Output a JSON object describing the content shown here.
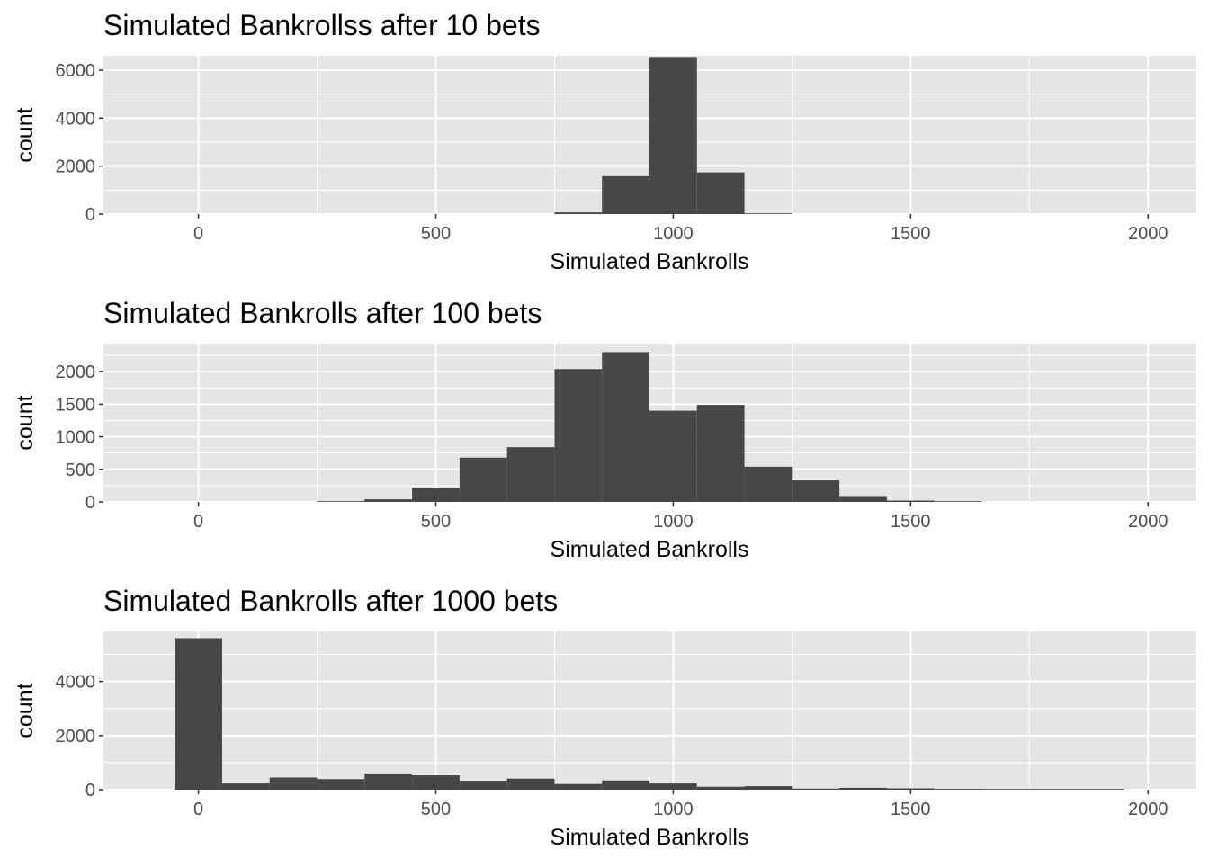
{
  "colors": {
    "panel_bg": "#e5e5e5",
    "grid": "#ffffff",
    "bar": "#474747",
    "tick_text": "#4d4d4d"
  },
  "chart_data": [
    {
      "type": "bar",
      "title": "Simulated Bankrollss after 10 bets",
      "xlabel": "Simulated Bankrolls",
      "ylabel": "count",
      "binwidth": 100,
      "xlim": [
        -200,
        2100
      ],
      "ylim": [
        0,
        6600
      ],
      "xticks": [
        0,
        500,
        1000,
        1500,
        2000
      ],
      "yticks": [
        0,
        2000,
        4000,
        6000
      ],
      "grid": true,
      "bins": [
        {
          "x": 800,
          "count": 70
        },
        {
          "x": 900,
          "count": 1580
        },
        {
          "x": 1000,
          "count": 6550
        },
        {
          "x": 1100,
          "count": 1740
        },
        {
          "x": 1200,
          "count": 15
        }
      ]
    },
    {
      "type": "bar",
      "title": "Simulated Bankrolls after 100 bets",
      "xlabel": "Simulated Bankrolls",
      "ylabel": "count",
      "binwidth": 100,
      "xlim": [
        -200,
        2100
      ],
      "ylim": [
        0,
        2430
      ],
      "xticks": [
        0,
        500,
        1000,
        1500,
        2000
      ],
      "yticks": [
        0,
        500,
        1000,
        1500,
        2000
      ],
      "grid": true,
      "bins": [
        {
          "x": 300,
          "count": 10
        },
        {
          "x": 400,
          "count": 40
        },
        {
          "x": 500,
          "count": 220
        },
        {
          "x": 600,
          "count": 680
        },
        {
          "x": 700,
          "count": 840
        },
        {
          "x": 800,
          "count": 2040
        },
        {
          "x": 900,
          "count": 2300
        },
        {
          "x": 1000,
          "count": 1400
        },
        {
          "x": 1100,
          "count": 1490
        },
        {
          "x": 1200,
          "count": 540
        },
        {
          "x": 1300,
          "count": 330
        },
        {
          "x": 1400,
          "count": 90
        },
        {
          "x": 1500,
          "count": 20
        },
        {
          "x": 1600,
          "count": 5
        }
      ]
    },
    {
      "type": "bar",
      "title": "Simulated Bankrolls after 1000 bets",
      "xlabel": "Simulated Bankrolls",
      "ylabel": "count",
      "binwidth": 100,
      "xlim": [
        -200,
        2100
      ],
      "ylim": [
        0,
        5850
      ],
      "xticks": [
        0,
        500,
        1000,
        1500,
        2000
      ],
      "yticks": [
        0,
        2000,
        4000
      ],
      "grid": true,
      "bins": [
        {
          "x": 0,
          "count": 5600
        },
        {
          "x": 100,
          "count": 230
        },
        {
          "x": 200,
          "count": 450
        },
        {
          "x": 300,
          "count": 390
        },
        {
          "x": 400,
          "count": 600
        },
        {
          "x": 500,
          "count": 530
        },
        {
          "x": 600,
          "count": 330
        },
        {
          "x": 700,
          "count": 410
        },
        {
          "x": 800,
          "count": 210
        },
        {
          "x": 900,
          "count": 340
        },
        {
          "x": 1000,
          "count": 230
        },
        {
          "x": 1100,
          "count": 110
        },
        {
          "x": 1200,
          "count": 130
        },
        {
          "x": 1300,
          "count": 40
        },
        {
          "x": 1400,
          "count": 70
        },
        {
          "x": 1500,
          "count": 50
        },
        {
          "x": 1600,
          "count": 30
        },
        {
          "x": 1700,
          "count": 20
        },
        {
          "x": 1800,
          "count": 10
        },
        {
          "x": 1900,
          "count": 5
        }
      ]
    }
  ]
}
